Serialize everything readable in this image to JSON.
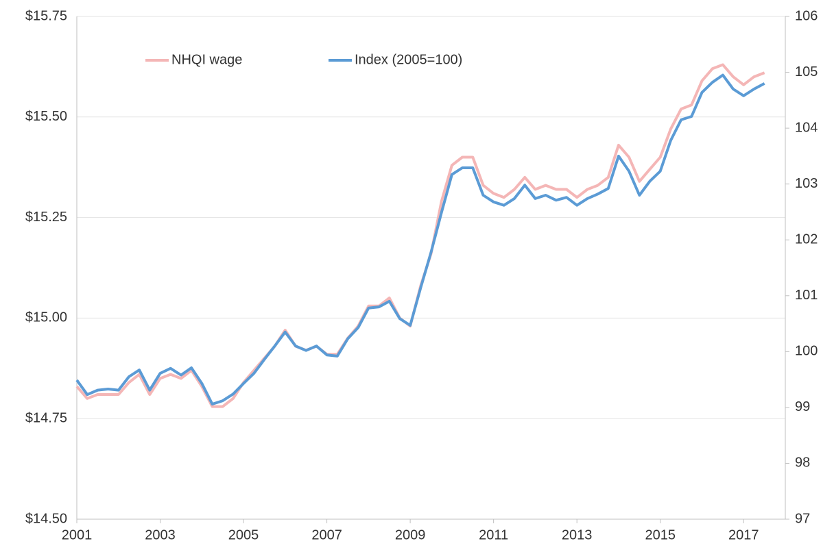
{
  "chart_data": {
    "type": "line",
    "x": [
      2001,
      2001.25,
      2001.5,
      2001.75,
      2002,
      2002.25,
      2002.5,
      2002.75,
      2003,
      2003.25,
      2003.5,
      2003.75,
      2004,
      2004.25,
      2004.5,
      2004.75,
      2005,
      2005.25,
      2005.5,
      2005.75,
      2006,
      2006.25,
      2006.5,
      2006.75,
      2007,
      2007.25,
      2007.5,
      2007.75,
      2008,
      2008.25,
      2008.5,
      2008.75,
      2009,
      2009.25,
      2009.5,
      2009.75,
      2010,
      2010.25,
      2010.5,
      2010.75,
      2011,
      2011.25,
      2011.5,
      2011.75,
      2012,
      2012.25,
      2012.5,
      2012.75,
      2013,
      2013.25,
      2013.5,
      2013.75,
      2014,
      2014.25,
      2014.5,
      2014.75,
      2015,
      2015.25,
      2015.5,
      2015.75,
      2016,
      2016.25,
      2016.5,
      2016.75,
      2017,
      2017.25,
      2017.5
    ],
    "series": [
      {
        "name": "NHQI wage",
        "color": "#f4b6b6",
        "axis": "y",
        "values": [
          14.83,
          14.8,
          14.81,
          14.81,
          14.81,
          14.84,
          14.86,
          14.81,
          14.85,
          14.86,
          14.85,
          14.87,
          14.83,
          14.78,
          14.78,
          14.8,
          14.84,
          14.87,
          14.9,
          14.93,
          14.97,
          14.93,
          14.92,
          14.93,
          14.91,
          14.91,
          14.95,
          14.98,
          15.03,
          15.03,
          15.05,
          15.0,
          14.98,
          15.08,
          15.16,
          15.29,
          15.38,
          15.4,
          15.4,
          15.33,
          15.31,
          15.3,
          15.32,
          15.35,
          15.32,
          15.33,
          15.32,
          15.32,
          15.3,
          15.32,
          15.33,
          15.35,
          15.43,
          15.4,
          15.34,
          15.37,
          15.4,
          15.47,
          15.52,
          15.53,
          15.59,
          15.62,
          15.63,
          15.6,
          15.58,
          15.6,
          15.61
        ]
      },
      {
        "name": "Index (2005=100)",
        "color": "#5b9bd5",
        "axis": "y2",
        "values": [
          99.49,
          99.23,
          99.31,
          99.33,
          99.31,
          99.55,
          99.67,
          99.31,
          99.61,
          99.7,
          99.58,
          99.71,
          99.43,
          99.06,
          99.12,
          99.24,
          99.43,
          99.61,
          99.86,
          100.1,
          100.35,
          100.1,
          100.02,
          100.1,
          99.94,
          99.92,
          100.23,
          100.43,
          100.78,
          100.8,
          100.9,
          100.59,
          100.47,
          101.14,
          101.78,
          102.49,
          103.17,
          103.29,
          103.29,
          102.8,
          102.68,
          102.62,
          102.74,
          102.98,
          102.74,
          102.8,
          102.71,
          102.76,
          102.62,
          102.74,
          102.82,
          102.92,
          103.5,
          103.23,
          102.8,
          103.05,
          103.23,
          103.78,
          104.15,
          104.21,
          104.64,
          104.82,
          104.95,
          104.7,
          104.58,
          104.7,
          104.8
        ]
      }
    ],
    "xlim": [
      2001,
      2018
    ],
    "xticks": [
      2001,
      2003,
      2005,
      2007,
      2009,
      2011,
      2013,
      2015,
      2017
    ],
    "ylim": [
      14.5,
      15.75
    ],
    "yticks": [
      {
        "value": 14.5,
        "label": "$14.50"
      },
      {
        "value": 14.75,
        "label": "$14.75"
      },
      {
        "value": 15,
        "label": "$15.00"
      },
      {
        "value": 15.25,
        "label": "$15.25"
      },
      {
        "value": 15.5,
        "label": "$15.50"
      },
      {
        "value": 15.75,
        "label": "$15.75"
      }
    ],
    "y2lim": [
      97,
      106
    ],
    "y2ticks": [
      97,
      98,
      99,
      100,
      101,
      102,
      103,
      104,
      105,
      106
    ],
    "grid": true,
    "legend": "upper left"
  }
}
